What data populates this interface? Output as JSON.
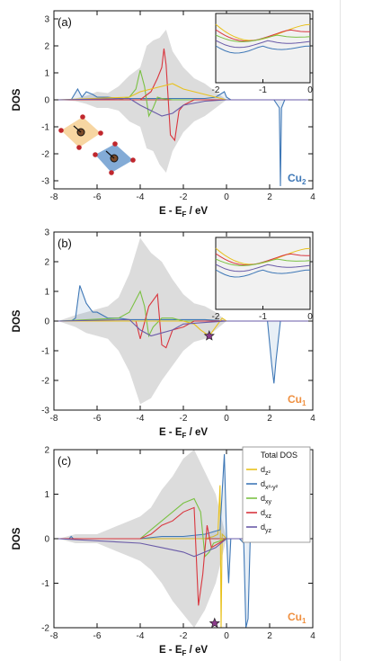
{
  "colors": {
    "total": "#dcdcdc",
    "dz2": "#e8c11c",
    "dx2y2": "#3f78b7",
    "dxy": "#7bc144",
    "dxz": "#d9363e",
    "dyz": "#6a5ba8",
    "zero": "#c0392b",
    "cu2": "#3f78b7",
    "cu1": "#ef8f3f",
    "star": "#8b3a8b"
  },
  "chart_data": [
    {
      "type": "area",
      "panel_label": "(a)",
      "site_label": {
        "text": "Cu",
        "sub": "2"
      },
      "xlabel": {
        "main": "E - E",
        "sub": "F",
        "tail": " / eV"
      },
      "ylabel": "DOS",
      "xlim": [
        -8,
        4
      ],
      "ylim": [
        -3.3,
        3.3
      ],
      "xticks": [
        "-8",
        "-6",
        "-4",
        "-2",
        "0",
        "2",
        "4"
      ],
      "yticks": [
        "3",
        "2",
        "1",
        "0",
        "-1",
        "-2",
        "-3"
      ],
      "inset": {
        "xlim": [
          -2,
          0
        ],
        "xticks": [
          "-2",
          "-1",
          "0"
        ]
      },
      "series": [
        {
          "key": "total",
          "x": [
            -7.8,
            -7,
            -6.5,
            -6,
            -5.5,
            -5,
            -4.5,
            -4,
            -3.7,
            -3.4,
            -3.1,
            -2.8,
            -2.5,
            -2,
            -1.5,
            -1,
            -0.5,
            0
          ],
          "up": [
            0,
            0.05,
            0.15,
            0.3,
            0.25,
            0.5,
            0.9,
            1.2,
            2.0,
            2.2,
            2.3,
            2.6,
            1.8,
            1.2,
            0.8,
            0.6,
            0.3,
            0
          ],
          "down": [
            0,
            -0.05,
            -0.15,
            -0.3,
            -0.3,
            -0.4,
            -0.8,
            -1.0,
            -1.8,
            -1.9,
            -2.4,
            -2.7,
            -1.9,
            -1.2,
            -0.8,
            -0.6,
            -0.3,
            0
          ]
        },
        {
          "key": "dx2y2",
          "x": [
            -7.8,
            -7.2,
            -6.9,
            -6.7,
            -6.5,
            -6.2,
            -6,
            -5.5,
            -5,
            -4.5,
            -4,
            -3.5,
            -3,
            -2.5,
            -2,
            -1.5,
            -1,
            -0.5,
            -0.1,
            0,
            0.2,
            2.2,
            2.45,
            2.5,
            2.55,
            2.7,
            4
          ],
          "y": [
            0,
            0,
            0.4,
            0.1,
            0.3,
            0.2,
            0.1,
            0.1,
            0.05,
            0.05,
            0.05,
            0.05,
            0.05,
            0.05,
            0.05,
            0.05,
            0.05,
            0.1,
            0.3,
            0.1,
            0,
            0,
            -0.3,
            -3.2,
            -0.3,
            0,
            0
          ]
        },
        {
          "key": "dxy",
          "x": [
            -7.8,
            -5,
            -4.5,
            -4.2,
            -4,
            -3.8,
            -3.6,
            -3.4,
            -3.2,
            -3,
            -2.5,
            -2,
            -1,
            0,
            4
          ],
          "y": [
            0,
            0,
            0.1,
            0.4,
            1.1,
            0.5,
            -0.6,
            -0.3,
            0.1,
            0.05,
            0,
            0,
            0,
            0,
            0
          ]
        },
        {
          "key": "dxz",
          "x": [
            -7.8,
            -4,
            -3.5,
            -3.2,
            -3,
            -2.9,
            -2.8,
            -2.6,
            -2.4,
            -2.2,
            -2,
            -1.5,
            0,
            4
          ],
          "y": [
            0,
            0,
            0.3,
            0.8,
            1.2,
            1.9,
            1.3,
            -1.3,
            -1.5,
            -0.4,
            -0.2,
            0,
            0,
            0
          ]
        },
        {
          "key": "dz2",
          "x": [
            -7.8,
            -4.5,
            -4,
            -3.5,
            -3,
            -2.5,
            -2,
            -1.5,
            -1,
            -0.5,
            0,
            4
          ],
          "y": [
            0,
            0.1,
            0.3,
            0.4,
            0.5,
            0.6,
            0.4,
            0.3,
            0.2,
            0.1,
            0,
            0
          ]
        },
        {
          "key": "dyz",
          "x": [
            -7.8,
            -4.5,
            -4,
            -3.5,
            -3,
            -2.5,
            -2,
            -1,
            0,
            4
          ],
          "y": [
            0,
            0.05,
            -0.2,
            -0.4,
            -0.6,
            -0.5,
            -0.2,
            -0.05,
            0,
            0
          ]
        }
      ]
    },
    {
      "type": "area",
      "panel_label": "(b)",
      "site_label": {
        "text": "Cu",
        "sub": "1"
      },
      "xlabel": {
        "main": "E - E",
        "sub": "F",
        "tail": " / eV"
      },
      "ylabel": "DOS",
      "xlim": [
        -8,
        4
      ],
      "ylim": [
        -3,
        3
      ],
      "xticks": [
        "-8",
        "-6",
        "-4",
        "-2",
        "0",
        "2",
        "4"
      ],
      "yticks": [
        "3",
        "2",
        "1",
        "0",
        "-1",
        "-2",
        "-3"
      ],
      "inset": {
        "xlim": [
          -2,
          0
        ],
        "xticks": [
          "-2",
          "-1",
          "0"
        ]
      },
      "star": {
        "x": -0.8,
        "y": -0.5
      },
      "series": [
        {
          "key": "total",
          "x": [
            -7.8,
            -7,
            -6.5,
            -6,
            -5.5,
            -5,
            -4.5,
            -4,
            -3.5,
            -3,
            -2.5,
            -2,
            -1.5,
            -1,
            -0.5,
            0
          ],
          "up": [
            0,
            0.2,
            0.3,
            0.4,
            0.5,
            0.8,
            1.6,
            2.8,
            2.3,
            2.0,
            1.4,
            0.9,
            0.6,
            0.5,
            0.3,
            0
          ],
          "down": [
            0,
            -0.2,
            -0.4,
            -0.5,
            -0.6,
            -1.0,
            -1.7,
            -2.8,
            -2.6,
            -2.0,
            -1.5,
            -1.0,
            -0.7,
            -0.6,
            -0.3,
            0
          ]
        },
        {
          "key": "dx2y2",
          "x": [
            -7.8,
            -7.2,
            -7,
            -6.8,
            -6.5,
            -6.2,
            -6,
            -5.5,
            -5,
            -4.5,
            -4,
            -3,
            -2,
            -1,
            0,
            1.9,
            2.1,
            2.2,
            2.3,
            2.5,
            4
          ],
          "y": [
            0,
            0,
            0.1,
            1.2,
            0.6,
            0.3,
            0.3,
            0.1,
            0.1,
            0.05,
            0.05,
            0.05,
            0.05,
            0.05,
            0,
            0,
            -1.5,
            -2.1,
            -1.3,
            0,
            0
          ]
        },
        {
          "key": "dxy",
          "x": [
            -7.8,
            -5,
            -4.5,
            -4,
            -3.8,
            -3.6,
            -3.4,
            -3,
            -2.5,
            -2,
            -1.5,
            -1,
            0,
            4
          ],
          "y": [
            0,
            0.1,
            0.3,
            1.0,
            0.5,
            -0.5,
            -0.2,
            0.1,
            0.1,
            0,
            0,
            0,
            0,
            0
          ]
        },
        {
          "key": "dxz",
          "x": [
            -7.8,
            -4.2,
            -4,
            -3.6,
            -3.2,
            -3,
            -2.8,
            -2.5,
            -2,
            -1.5,
            0,
            4
          ],
          "y": [
            0,
            0,
            -0.6,
            0.5,
            0.9,
            -0.8,
            -0.9,
            -0.3,
            -0.2,
            0,
            0,
            0
          ]
        },
        {
          "key": "dz2",
          "x": [
            -7.8,
            -2,
            -1.5,
            -1.2,
            -1,
            -0.8,
            -0.6,
            -0.4,
            -0.2,
            0,
            4
          ],
          "y": [
            0,
            0,
            -0.1,
            -0.3,
            -0.4,
            -0.5,
            -0.3,
            -0.1,
            0.1,
            0,
            0
          ]
        },
        {
          "key": "dyz",
          "x": [
            -7.8,
            -4.5,
            -4,
            -3.5,
            -3,
            -2.5,
            -2,
            -1,
            0,
            4
          ],
          "y": [
            0,
            0.05,
            -0.3,
            -0.5,
            -0.4,
            -0.3,
            -0.1,
            -0.05,
            0,
            0
          ]
        }
      ]
    },
    {
      "type": "area",
      "panel_label": "(c)",
      "site_label": {
        "text": "Cu",
        "sub": "1"
      },
      "xlabel": {
        "main": "E - E",
        "sub": "F",
        "tail": " / eV"
      },
      "ylabel": "DOS",
      "xlim": [
        -8,
        4
      ],
      "ylim": [
        -2,
        2
      ],
      "xticks": [
        "-8",
        "-6",
        "-4",
        "-2",
        "0",
        "2",
        "4"
      ],
      "yticks": [
        "2",
        "1",
        "0",
        "-1",
        "-2"
      ],
      "star": {
        "x": -0.55,
        "y": -1.9
      },
      "legend": [
        "Total DOS",
        "d",
        "d",
        "d",
        "d",
        "d"
      ],
      "legend_subs": [
        "",
        "z²",
        "x²-y²",
        "xy",
        "xz",
        "yz"
      ],
      "series": [
        {
          "key": "total",
          "x": [
            -7.8,
            -7,
            -6,
            -5,
            -4.5,
            -4,
            -3.5,
            -3,
            -2.5,
            -2,
            -1.5,
            -1,
            -0.5,
            0
          ],
          "up": [
            0,
            0.1,
            0.1,
            0.3,
            0.4,
            0.5,
            0.7,
            1.1,
            1.4,
            1.8,
            2.0,
            1.5,
            1.0,
            0
          ],
          "down": [
            0,
            -0.1,
            -0.1,
            -0.3,
            -0.4,
            -0.5,
            -0.7,
            -1.0,
            -1.4,
            -1.7,
            -2.0,
            -1.6,
            -1.0,
            0
          ]
        },
        {
          "key": "dz2",
          "x": [
            -7.8,
            -1,
            -0.6,
            -0.4,
            -0.3,
            -0.25,
            -0.2,
            0,
            4
          ],
          "y": [
            0,
            0,
            0.05,
            0.1,
            1.2,
            -2.0,
            0.1,
            0,
            0
          ]
        },
        {
          "key": "dx2y2",
          "x": [
            -7.8,
            -7.3,
            -7.2,
            -7.1,
            -6,
            -5,
            -4,
            -3,
            -2,
            -1,
            -0.3,
            -0.1,
            0,
            0.1,
            0.2,
            0.6,
            0.8,
            0.9,
            1.0,
            1.1,
            4
          ],
          "y": [
            0,
            0,
            0.05,
            0,
            0,
            0,
            0,
            0.05,
            0.05,
            0.1,
            0.2,
            1.9,
            0.1,
            -1.0,
            0,
            0,
            -0.1,
            -2.0,
            -1.8,
            0,
            0
          ]
        },
        {
          "key": "dxy",
          "x": [
            -7.8,
            -4,
            -3.5,
            -3,
            -2.5,
            -2,
            -1.5,
            -1.2,
            -1,
            -0.8,
            -0.6,
            0,
            4
          ],
          "y": [
            0,
            0,
            0.2,
            0.4,
            0.6,
            0.8,
            0.9,
            0.6,
            -0.4,
            -0.3,
            -0.1,
            0,
            0
          ]
        },
        {
          "key": "dxz",
          "x": [
            -7.8,
            -4,
            -3.5,
            -3,
            -2.5,
            -2,
            -1.5,
            -1.3,
            -1.1,
            -0.9,
            -0.7,
            0,
            4
          ],
          "y": [
            0,
            0,
            0.1,
            0.3,
            0.4,
            0.6,
            0.7,
            -1.5,
            -0.8,
            0.3,
            -0.2,
            0,
            0
          ]
        },
        {
          "key": "dyz",
          "x": [
            -7.8,
            -4,
            -3,
            -2,
            -1.5,
            -1,
            -0.5,
            0,
            4
          ],
          "y": [
            0,
            -0.1,
            -0.2,
            -0.3,
            -0.4,
            -0.3,
            -0.2,
            0,
            0
          ]
        }
      ]
    }
  ]
}
